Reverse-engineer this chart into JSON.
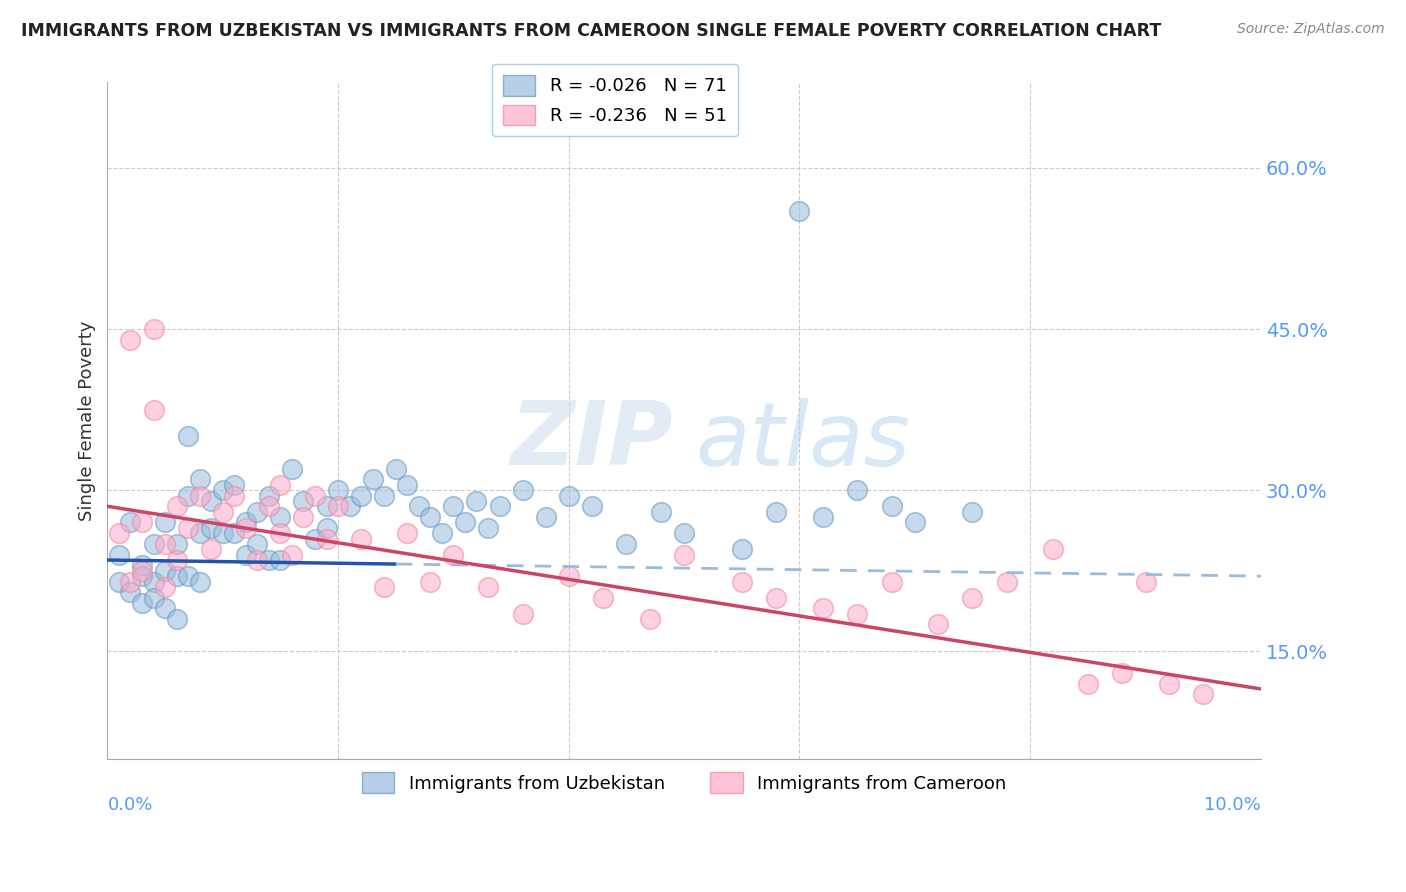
{
  "title": "IMMIGRANTS FROM UZBEKISTAN VS IMMIGRANTS FROM CAMEROON SINGLE FEMALE POVERTY CORRELATION CHART",
  "source": "Source: ZipAtlas.com",
  "ylabel": "Single Female Poverty",
  "right_yticks": [
    "60.0%",
    "45.0%",
    "30.0%",
    "15.0%"
  ],
  "right_ytick_vals": [
    0.6,
    0.45,
    0.3,
    0.15
  ],
  "legend_blue": "R = -0.026   N = 71",
  "legend_pink": "R = -0.236   N = 51",
  "legend_label_blue": "Immigrants from Uzbekistan",
  "legend_label_pink": "Immigrants from Cameroon",
  "color_blue": "#99BBDD",
  "color_pink": "#FFAACC",
  "color_blue_edge": "#6699BB",
  "color_pink_edge": "#EE8899",
  "trend_blue_solid_color": "#2255AA",
  "trend_pink_solid_color": "#CC4466",
  "trend_blue_dash_color": "#99BBDD",
  "watermark_zip": "ZIP",
  "watermark_atlas": "atlas",
  "xmin": 0.0,
  "xmax": 0.1,
  "ymin": 0.05,
  "ymax": 0.68,
  "trend_blue_x0": 0.0,
  "trend_blue_y0": 0.235,
  "trend_blue_x1": 0.1,
  "trend_blue_y1": 0.22,
  "trend_blue_solid_end": 0.025,
  "trend_pink_x0": 0.0,
  "trend_pink_y0": 0.285,
  "trend_pink_x1": 0.1,
  "trend_pink_y1": 0.115,
  "uzbekistan_x": [
    0.001,
    0.001,
    0.002,
    0.002,
    0.003,
    0.003,
    0.003,
    0.004,
    0.004,
    0.004,
    0.005,
    0.005,
    0.005,
    0.006,
    0.006,
    0.006,
    0.007,
    0.007,
    0.007,
    0.008,
    0.008,
    0.008,
    0.009,
    0.009,
    0.01,
    0.01,
    0.011,
    0.011,
    0.012,
    0.012,
    0.013,
    0.013,
    0.014,
    0.014,
    0.015,
    0.015,
    0.016,
    0.017,
    0.018,
    0.019,
    0.019,
    0.02,
    0.021,
    0.022,
    0.023,
    0.024,
    0.025,
    0.026,
    0.027,
    0.028,
    0.029,
    0.03,
    0.031,
    0.032,
    0.033,
    0.034,
    0.036,
    0.038,
    0.04,
    0.042,
    0.045,
    0.048,
    0.05,
    0.055,
    0.058,
    0.06,
    0.062,
    0.065,
    0.068,
    0.07,
    0.075
  ],
  "uzbekistan_y": [
    0.24,
    0.215,
    0.27,
    0.205,
    0.23,
    0.22,
    0.195,
    0.25,
    0.215,
    0.2,
    0.27,
    0.225,
    0.19,
    0.25,
    0.22,
    0.18,
    0.35,
    0.295,
    0.22,
    0.31,
    0.26,
    0.215,
    0.29,
    0.265,
    0.3,
    0.26,
    0.305,
    0.26,
    0.27,
    0.24,
    0.28,
    0.25,
    0.295,
    0.235,
    0.275,
    0.235,
    0.32,
    0.29,
    0.255,
    0.285,
    0.265,
    0.3,
    0.285,
    0.295,
    0.31,
    0.295,
    0.32,
    0.305,
    0.285,
    0.275,
    0.26,
    0.285,
    0.27,
    0.29,
    0.265,
    0.285,
    0.3,
    0.275,
    0.295,
    0.285,
    0.25,
    0.28,
    0.26,
    0.245,
    0.28,
    0.56,
    0.275,
    0.3,
    0.285,
    0.27,
    0.28
  ],
  "cameroon_x": [
    0.001,
    0.002,
    0.002,
    0.003,
    0.003,
    0.004,
    0.004,
    0.005,
    0.005,
    0.006,
    0.006,
    0.007,
    0.008,
    0.009,
    0.01,
    0.011,
    0.012,
    0.013,
    0.014,
    0.015,
    0.015,
    0.016,
    0.017,
    0.018,
    0.019,
    0.02,
    0.022,
    0.024,
    0.026,
    0.028,
    0.03,
    0.033,
    0.036,
    0.04,
    0.043,
    0.047,
    0.05,
    0.055,
    0.058,
    0.062,
    0.065,
    0.068,
    0.072,
    0.075,
    0.078,
    0.082,
    0.085,
    0.088,
    0.09,
    0.092,
    0.095
  ],
  "cameroon_y": [
    0.26,
    0.215,
    0.44,
    0.27,
    0.225,
    0.45,
    0.375,
    0.25,
    0.21,
    0.285,
    0.235,
    0.265,
    0.295,
    0.245,
    0.28,
    0.295,
    0.265,
    0.235,
    0.285,
    0.305,
    0.26,
    0.24,
    0.275,
    0.295,
    0.255,
    0.285,
    0.255,
    0.21,
    0.26,
    0.215,
    0.24,
    0.21,
    0.185,
    0.22,
    0.2,
    0.18,
    0.24,
    0.215,
    0.2,
    0.19,
    0.185,
    0.215,
    0.175,
    0.2,
    0.215,
    0.245,
    0.12,
    0.13,
    0.215,
    0.12,
    0.11
  ]
}
